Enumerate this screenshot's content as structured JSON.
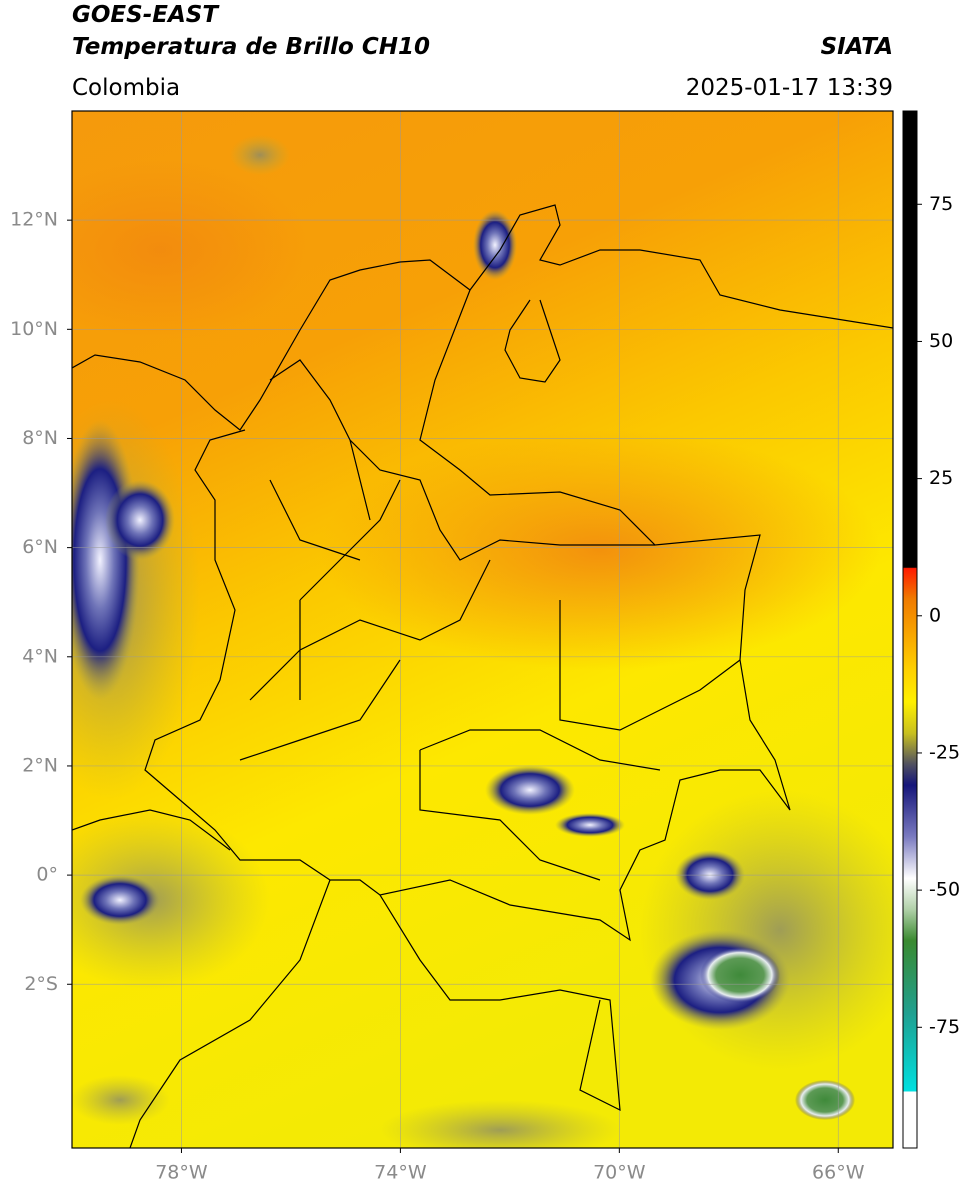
{
  "header": {
    "title_line1": "GOES-EAST",
    "title_line2": "Temperatura de Brillo CH10",
    "region": "Colombia",
    "source": "SIATA",
    "datetime": "2025-01-17 13:39"
  },
  "map": {
    "lon_range": [
      -80,
      -65
    ],
    "lat_range": [
      -5,
      14
    ],
    "lon_ticks": [
      {
        "value": -78,
        "label": "78°W"
      },
      {
        "value": -74,
        "label": "74°W"
      },
      {
        "value": -70,
        "label": "70°W"
      },
      {
        "value": -66,
        "label": "66°W"
      }
    ],
    "lat_ticks": [
      {
        "value": 12,
        "label": "12°N"
      },
      {
        "value": 10,
        "label": "10°N"
      },
      {
        "value": 8,
        "label": "8°N"
      },
      {
        "value": 6,
        "label": "6°N"
      },
      {
        "value": 4,
        "label": "4°N"
      },
      {
        "value": 2,
        "label": "2°N"
      },
      {
        "value": 0,
        "label": "0°"
      },
      {
        "value": -2,
        "label": "2°S"
      }
    ]
  },
  "colorbar": {
    "range": [
      -97,
      92
    ],
    "ticks": [
      75,
      50,
      25,
      0,
      -25,
      -50,
      -75
    ]
  }
}
